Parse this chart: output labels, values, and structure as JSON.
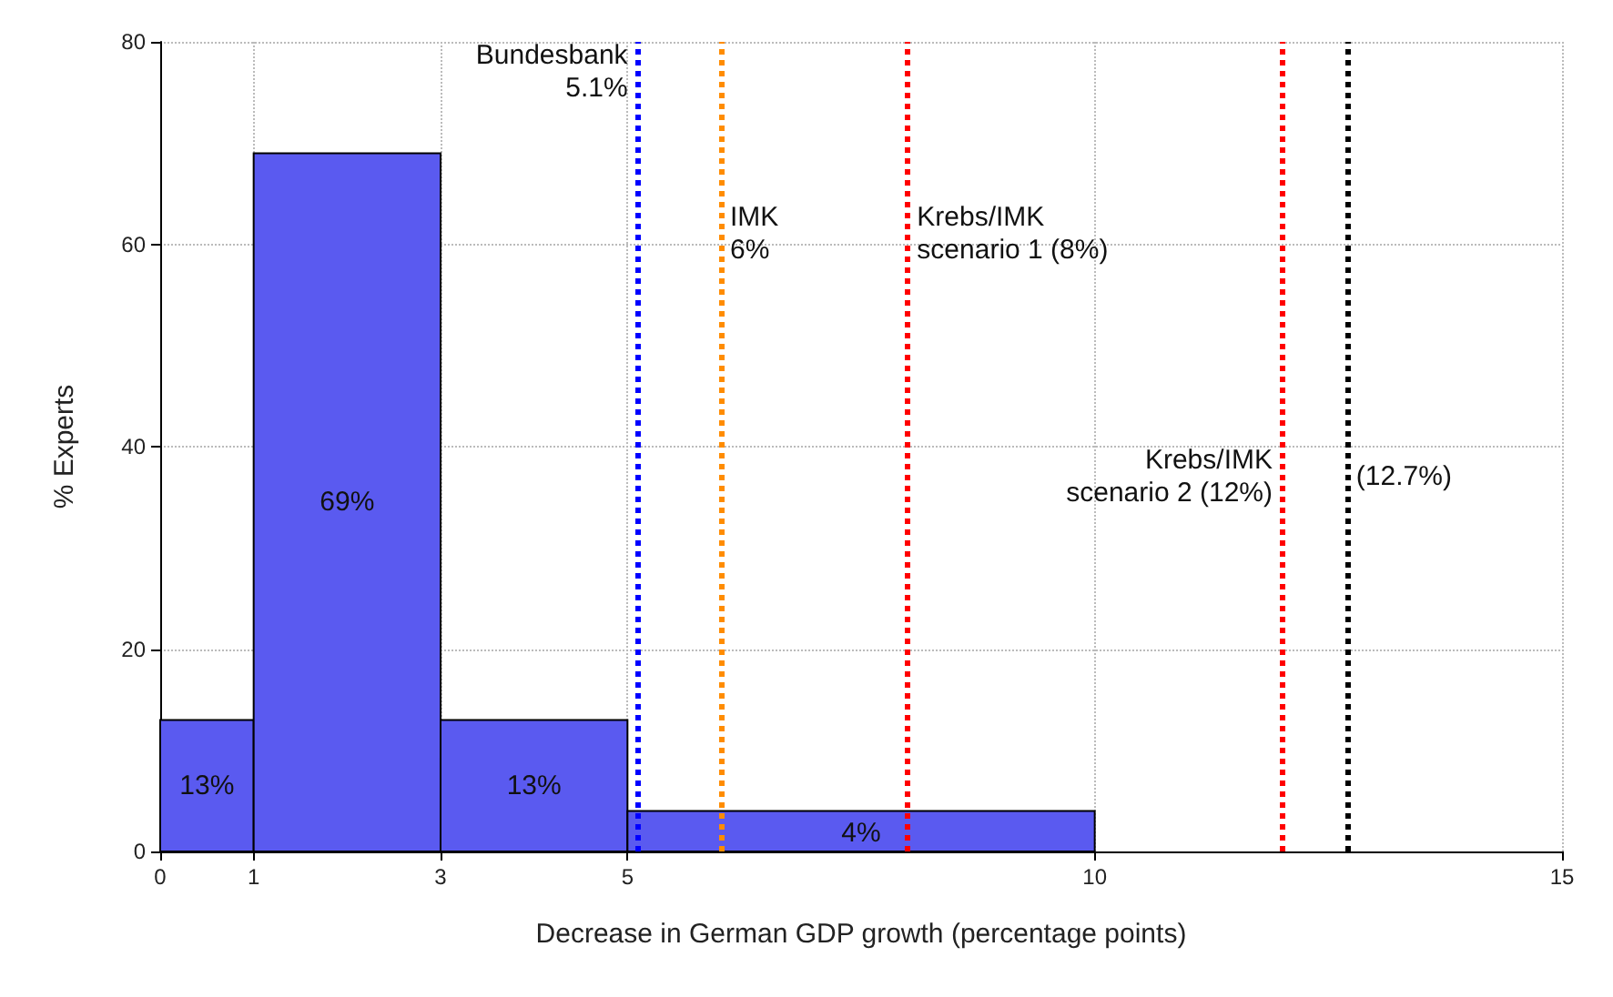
{
  "chart_data": {
    "type": "histogram",
    "xlabel": "Decrease in German GDP growth (percentage points)",
    "ylabel": "% Experts",
    "bins": [
      0,
      1,
      3,
      5,
      10
    ],
    "values": [
      13,
      69,
      13,
      4
    ],
    "value_labels": [
      "13%",
      "69%",
      "13%",
      "4%"
    ],
    "color": "#5a5af0",
    "xlim": [
      0,
      15
    ],
    "xticks": [
      0,
      1,
      3,
      5,
      10,
      15
    ],
    "ylim": [
      0,
      80
    ],
    "yticks": [
      0,
      20,
      40,
      60,
      80
    ],
    "grid": true,
    "ref_lines": [
      {
        "axis": "x",
        "value": 5.1,
        "label": "Bundesbank\n5.1%",
        "color": "#0000ff",
        "line_style": "dotted"
      },
      {
        "axis": "x",
        "value": 6,
        "label": "IMK\n6%",
        "color": "#ff8c00",
        "line_style": "dotted"
      },
      {
        "axis": "x",
        "value": 8,
        "label": "Krebs/IMK\nscenario 1 (8%)",
        "color": "#ff0000",
        "line_style": "dotted"
      },
      {
        "axis": "x",
        "value": 12,
        "label": "Krebs/IMK\nscenario 2 (12%)",
        "color": "#ff0000",
        "line_style": "dotted"
      },
      {
        "axis": "x",
        "value": 12.7,
        "label": "(12.7%)",
        "color": "#000000",
        "line_style": "dotted"
      }
    ]
  }
}
